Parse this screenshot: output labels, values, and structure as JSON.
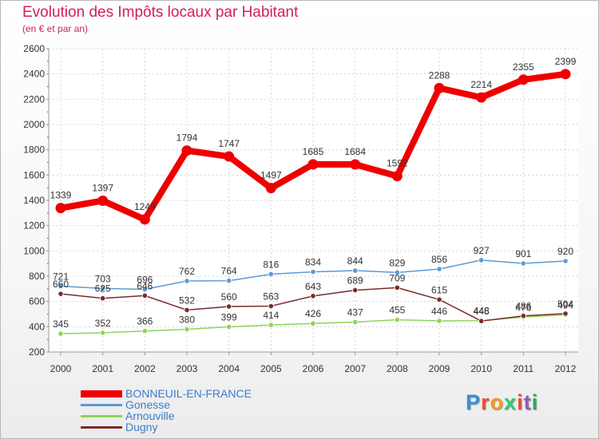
{
  "header": {
    "title": "Evolution des Impôts locaux par Habitant",
    "subtitle": "(en € et par an)"
  },
  "logo": {
    "text": "Proxiti",
    "colors": [
      "#3b8fd6",
      "#e84c3d",
      "#f39c12",
      "#2ecc71",
      "#e84c3d",
      "#9b59b6",
      "#27ae60"
    ]
  },
  "chart_data": {
    "type": "line",
    "title": "Evolution des Impôts locaux par Habitant",
    "subtitle": "(en € et par an)",
    "xlabel": "",
    "ylabel": "",
    "ylim": [
      200,
      2600
    ],
    "y_ticks": [
      "200",
      "400",
      "600",
      "800",
      "1000",
      "1200",
      "1400",
      "1600",
      "1800",
      "2000",
      "2200",
      "2400",
      "2600"
    ],
    "categories": [
      "2000",
      "2001",
      "2002",
      "2003",
      "2004",
      "2005",
      "2006",
      "2007",
      "2008",
      "2009",
      "2010",
      "2011",
      "2012"
    ],
    "grid": true,
    "legend_position": "bottom-left",
    "series": [
      {
        "name": "Gonesse",
        "color": "#5b9bd5",
        "values": [
          721,
          703,
          696,
          762,
          764,
          816,
          834,
          844,
          829,
          856,
          927,
          901,
          920
        ]
      },
      {
        "name": "Arnouville",
        "color": "#8cd45a",
        "values": [
          345,
          352,
          366,
          380,
          399,
          414,
          426,
          437,
          455,
          446,
          448,
          476,
          494
        ]
      },
      {
        "name": "Dugny",
        "color": "#7b2b2b",
        "values": [
          660,
          625,
          646,
          532,
          560,
          563,
          643,
          689,
          709,
          615,
          445,
          486,
          504
        ]
      },
      {
        "name": "BONNEUIL-EN-FRANCE",
        "color": "#ee0000",
        "values": [
          1339,
          1397,
          1249,
          1794,
          1747,
          1497,
          1685,
          1684,
          1592,
          2288,
          2214,
          2355,
          2399
        ]
      }
    ],
    "legend_order": [
      "BONNEUIL-EN-FRANCE",
      "Gonesse",
      "Arnouville",
      "Dugny"
    ]
  }
}
